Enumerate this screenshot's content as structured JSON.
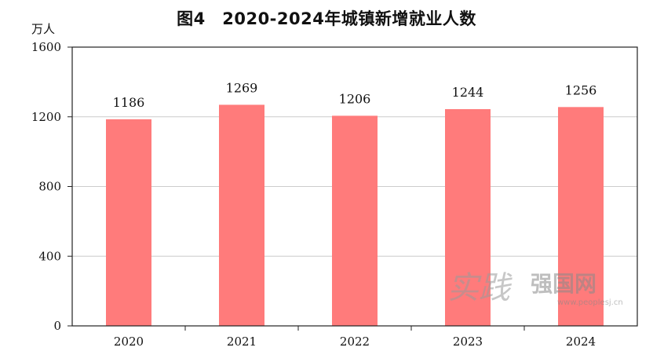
{
  "title": "图4　2020-2024年城镇新增就业人数",
  "unit": "万人",
  "colors": {
    "bar": "#ff7b7b",
    "grid": "#cccccc",
    "axis": "#222222"
  },
  "chart_data": {
    "type": "bar",
    "categories": [
      "2020",
      "2021",
      "2022",
      "2023",
      "2024"
    ],
    "values": [
      1186,
      1269,
      1206,
      1244,
      1256
    ],
    "ylim": [
      0,
      1600
    ],
    "yticks": [
      0,
      400,
      800,
      1200,
      1600
    ],
    "grid": true,
    "data_labels": [
      "1186",
      "1269",
      "1206",
      "1244",
      "1256"
    ]
  },
  "watermark": {
    "glyph": "实践",
    "name": "强国网",
    "url": "www.peoplesj.cn"
  }
}
